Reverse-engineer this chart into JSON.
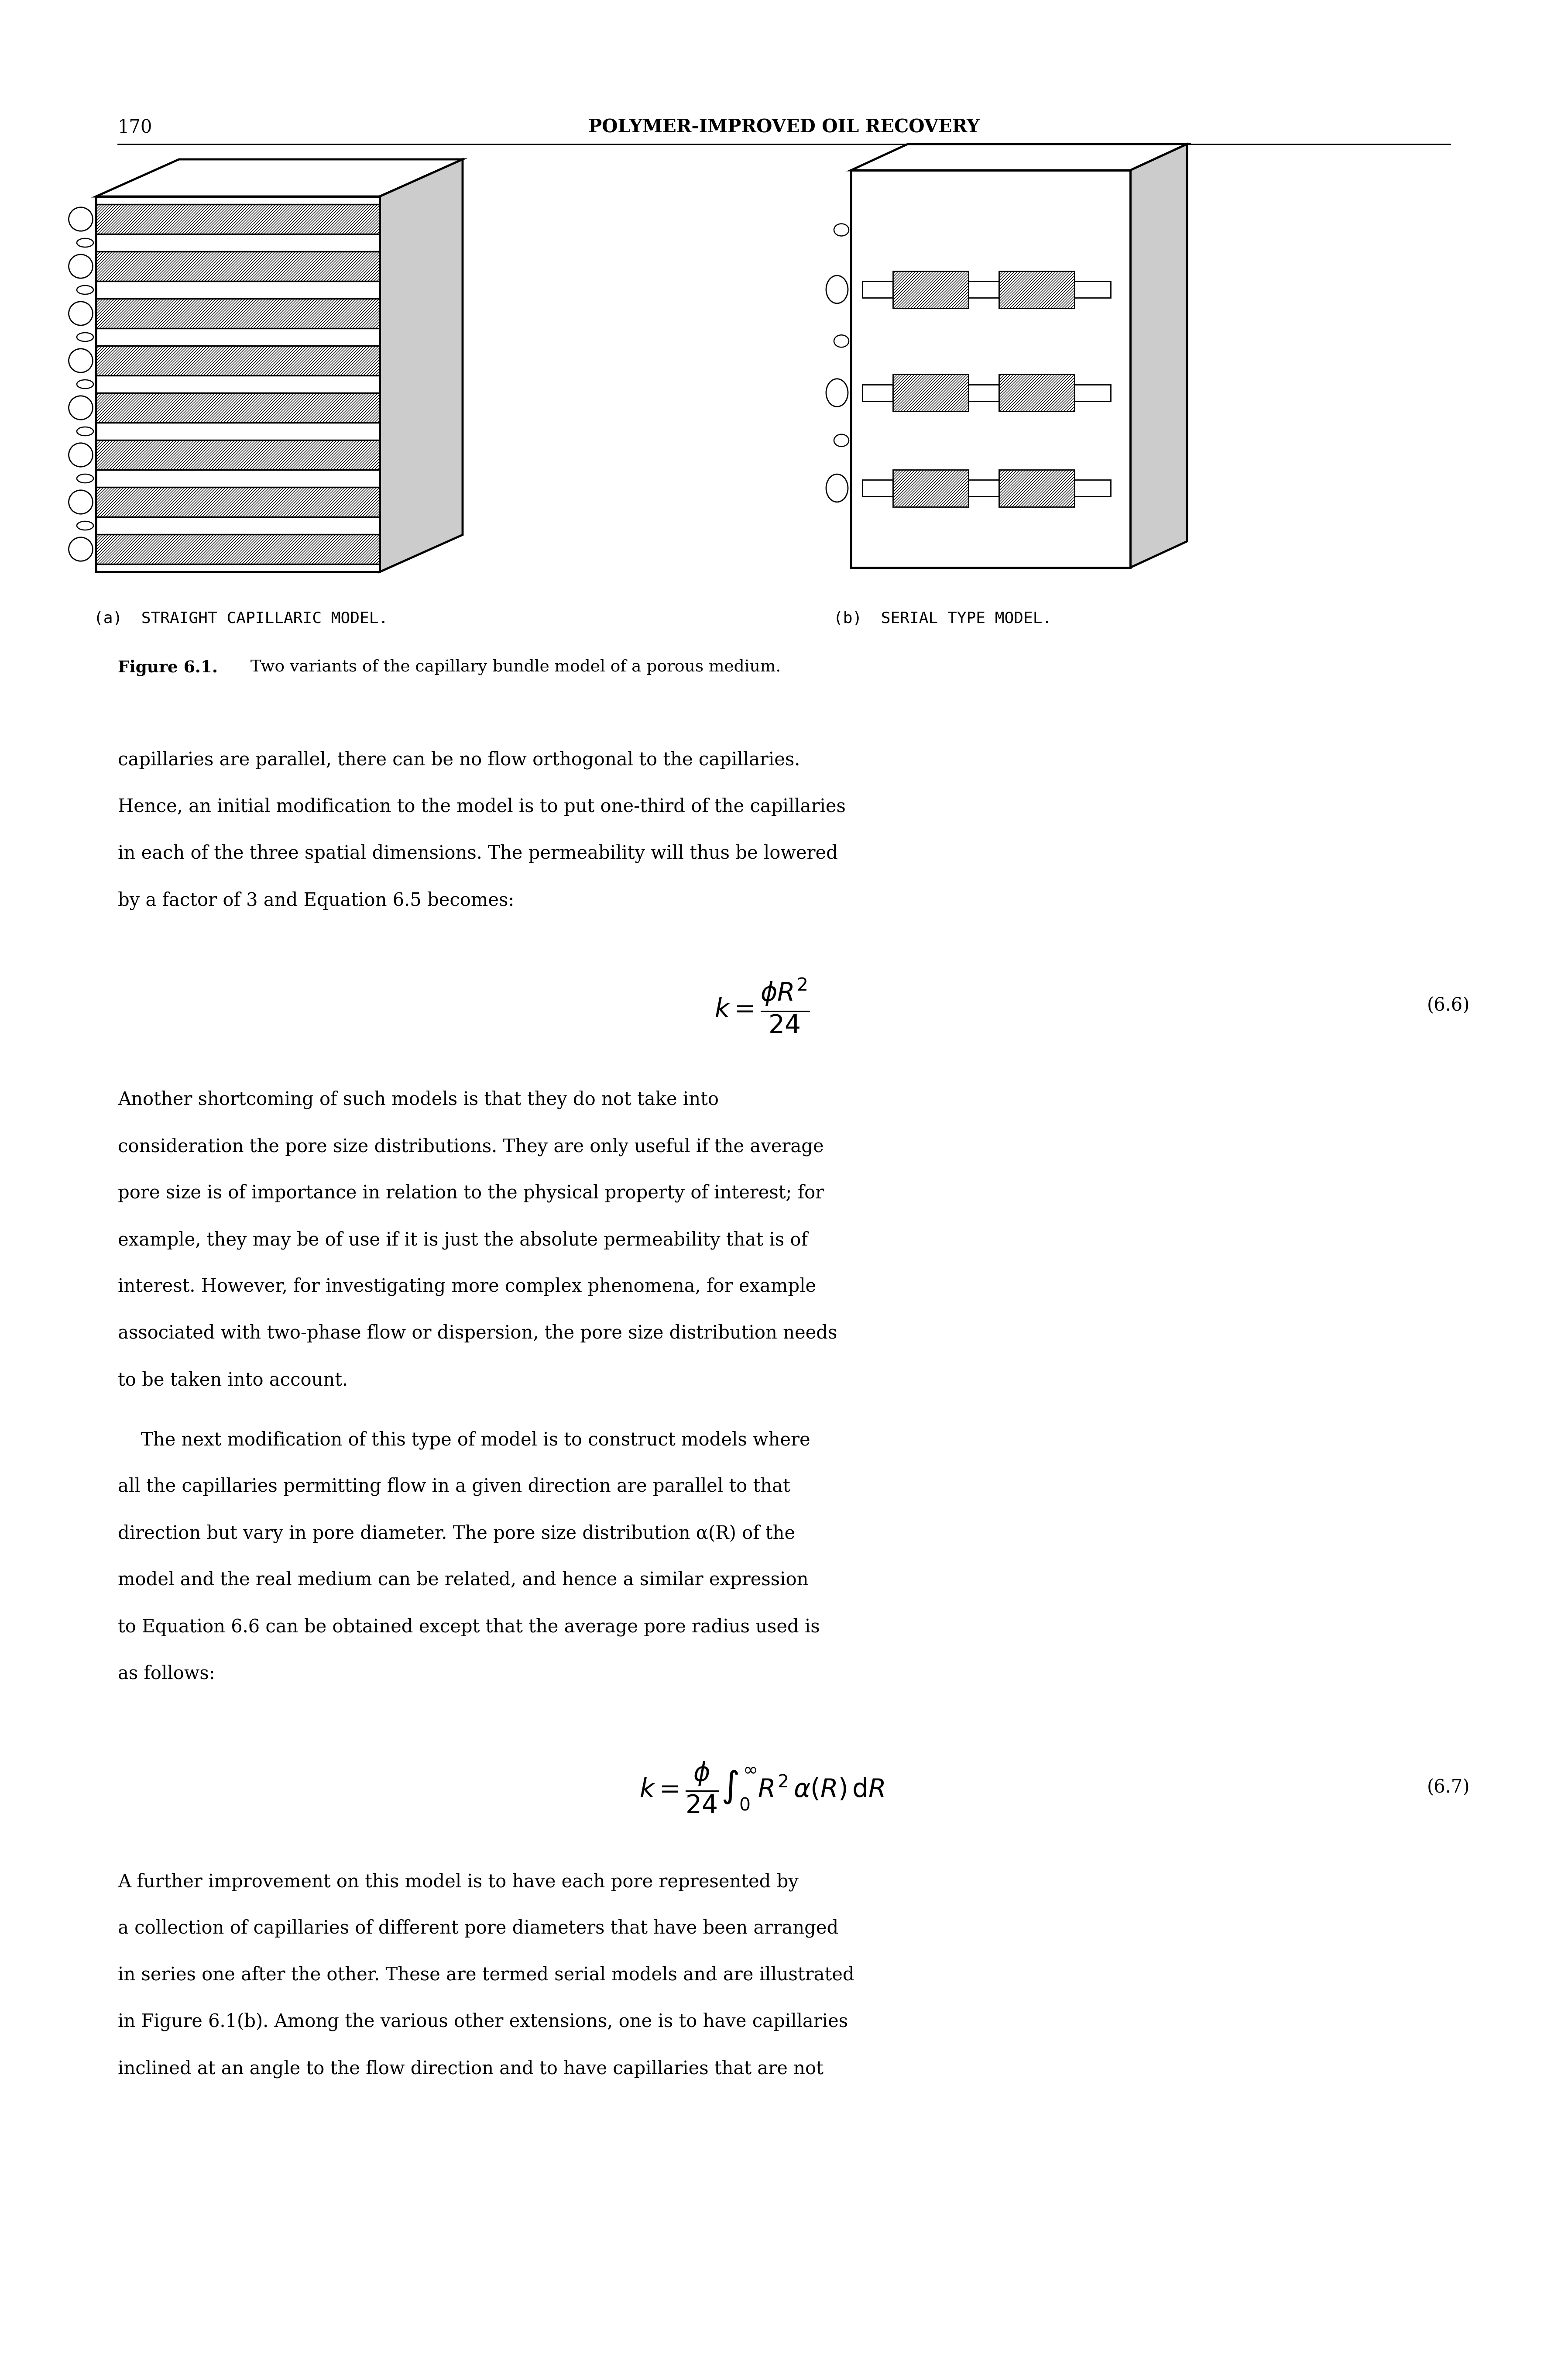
{
  "page_number": "170",
  "header_title": "POLYMER-IMPROVED OIL RECOVERY",
  "fig_caption_bold": "Figure 6.1.",
  "fig_caption_text": "  Two variants of the capillary bundle model of a porous medium.",
  "label_a": "(a)  STRAIGHT CAPILLARIC MODEL.",
  "label_b": "(b)  SERIAL TYPE MODEL.",
  "para1_lines": [
    "capillaries are parallel, there can be no flow orthogonal to the capillaries.",
    "Hence, an initial modification to the model is to put one-third of the capillaries",
    "in each of the three spatial dimensions. The permeability will thus be lowered",
    "by a factor of 3 and Equation 6.5 becomes:"
  ],
  "eq1_label": "(6.6)",
  "para2_lines": [
    "Another shortcoming of such models is that they do not take into",
    "consideration the pore size distributions. They are only useful if the average",
    "pore size is of importance in relation to the physical property of interest; for",
    "example, they may be of use if it is just the absolute permeability that is of",
    "interest. However, for investigating more complex phenomena, for example",
    "associated with two-phase flow or dispersion, the pore size distribution needs",
    "to be taken into account."
  ],
  "para3_lines": [
    "    The next modification of this type of model is to construct models where",
    "all the capillaries permitting flow in a given direction are parallel to that",
    "direction but vary in pore diameter. The pore size distribution α(R) of the",
    "model and the real medium can be related, and hence a similar expression",
    "to Equation 6.6 can be obtained except that the average pore radius used is",
    "as follows:"
  ],
  "eq2_label": "(6.7)",
  "para4_lines": [
    "A further improvement on this model is to have each pore represented by",
    "a collection of capillaries of different pore diameters that have been arranged",
    "in series one after the other. These are termed serial models and are illustrated",
    "in Figure 6.1(b). Among the various other extensions, one is to have capillaries",
    "inclined at an angle to the flow direction and to have capillaries that are not"
  ],
  "bg_color": "#ffffff",
  "text_color": "#000000",
  "lw_fig": 3.5,
  "lw_band": 2.5,
  "hatch_density": "/////"
}
